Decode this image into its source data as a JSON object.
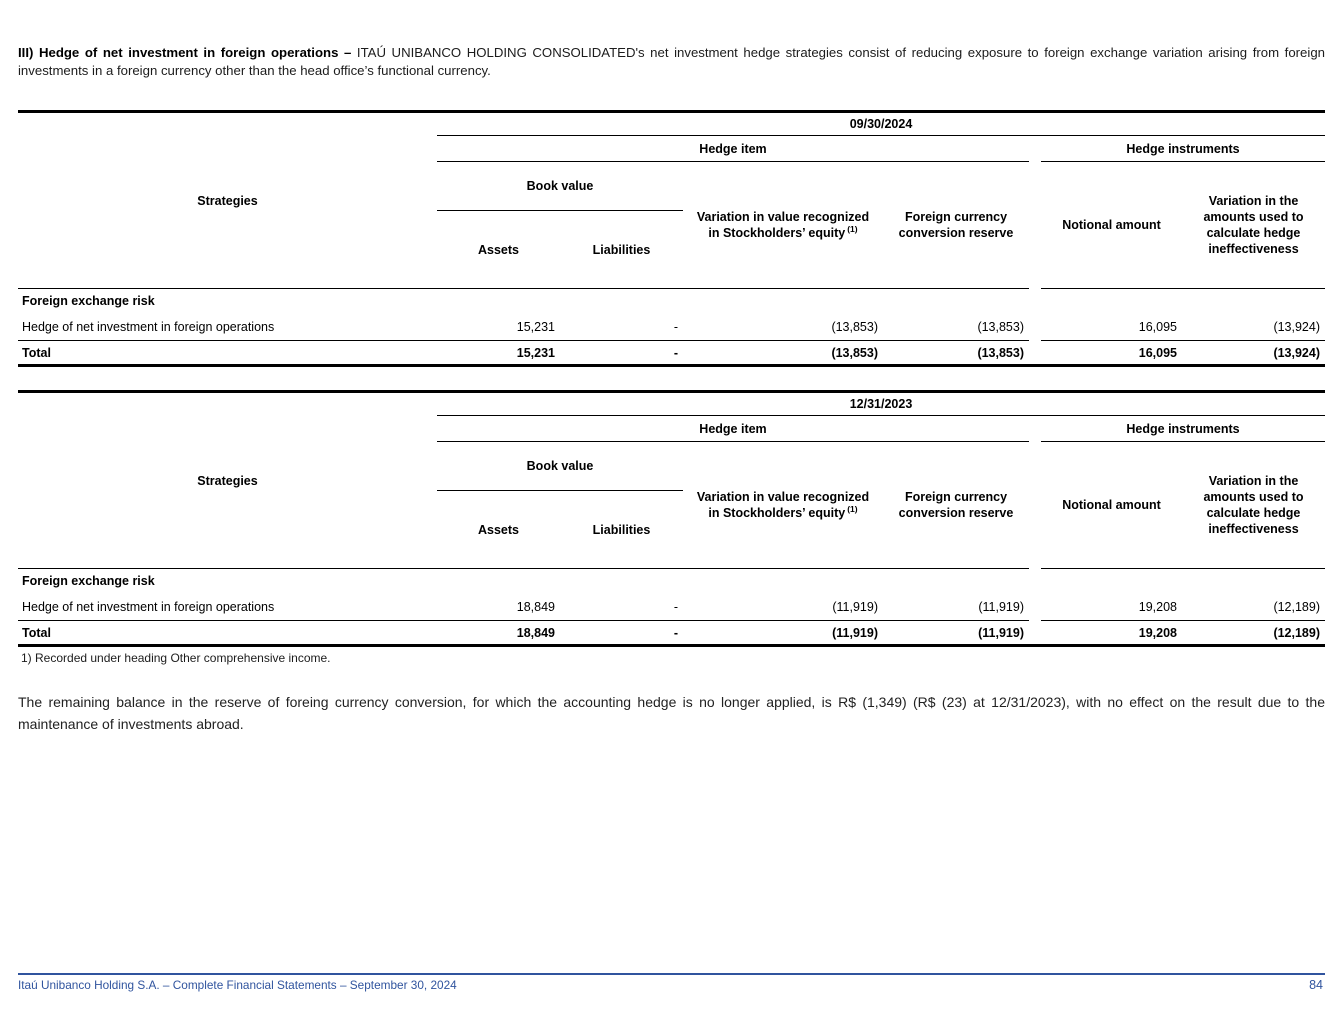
{
  "intro": {
    "heading_bold": "III) Hedge of net investment in foreign operations –",
    "body": "ITAÚ UNIBANCO HOLDING CONSOLIDATED's net investment hedge strategies consist of reducing exposure to foreign exchange variation arising from foreign investments in a foreign currency other than the head office’s functional currency."
  },
  "tables": [
    {
      "period": "09/30/2024",
      "groups": {
        "hedge_item": "Hedge item",
        "hedge_instruments": "Hedge instruments"
      },
      "headers": {
        "strategies": "Strategies",
        "book_value": "Book value",
        "assets": "Assets",
        "liabilities": "Liabilities",
        "variation_equity": "Variation in value recognized in Stockholders’ equity",
        "variation_equity_footnote_ref": "(1)",
        "fx_conversion_reserve": "Foreign currency conversion reserve",
        "notional_amount": "Notional amount",
        "variation_ineffectiveness": "Variation in the amounts used to calculate hedge ineffectiveness"
      },
      "section_label": "Foreign exchange risk",
      "rows": [
        {
          "label": "Hedge of net investment in foreign operations",
          "assets": "15,231",
          "liabilities": "-",
          "variation_equity": "(13,853)",
          "fx_conversion_reserve": "(13,853)",
          "notional_amount": "16,095",
          "variation_ineffectiveness": "(13,924)"
        }
      ],
      "total": {
        "label": "Total",
        "assets": "15,231",
        "liabilities": "-",
        "variation_equity": "(13,853)",
        "fx_conversion_reserve": "(13,853)",
        "notional_amount": "16,095",
        "variation_ineffectiveness": "(13,924)"
      }
    },
    {
      "period": "12/31/2023",
      "groups": {
        "hedge_item": "Hedge item",
        "hedge_instruments": "Hedge instruments"
      },
      "headers": {
        "strategies": "Strategies",
        "book_value": "Book value",
        "assets": "Assets",
        "liabilities": "Liabilities",
        "variation_equity": "Variation in value recognized in Stockholders’ equity",
        "variation_equity_footnote_ref": "(1)",
        "fx_conversion_reserve": "Foreign currency conversion reserve",
        "notional_amount": "Notional amount",
        "variation_ineffectiveness": "Variation in the amounts used to calculate hedge ineffectiveness"
      },
      "section_label": "Foreign exchange risk",
      "rows": [
        {
          "label": "Hedge of net investment in foreign operations",
          "assets": "18,849",
          "liabilities": "-",
          "variation_equity": "(11,919)",
          "fx_conversion_reserve": "(11,919)",
          "notional_amount": "19,208",
          "variation_ineffectiveness": "(12,189)"
        }
      ],
      "total": {
        "label": "Total",
        "assets": "18,849",
        "liabilities": "-",
        "variation_equity": "(11,919)",
        "fx_conversion_reserve": "(11,919)",
        "notional_amount": "19,208",
        "variation_ineffectiveness": "(12,189)"
      }
    }
  ],
  "footnote": "1) Recorded under heading Other comprehensive income.",
  "closing_paragraph": "The remaining balance in the reserve of foreing currency conversion, for which the accounting hedge is no longer applied, is R$ (1,349) (R$ (23) at 12/31/2023), with no effect on the result due to the maintenance of investments abroad.",
  "footer": {
    "text": "Itaú Unibanco Holding S.A. – Complete Financial Statements – September 30, 2024",
    "page_number": "84",
    "accent_color": "#30549e"
  }
}
